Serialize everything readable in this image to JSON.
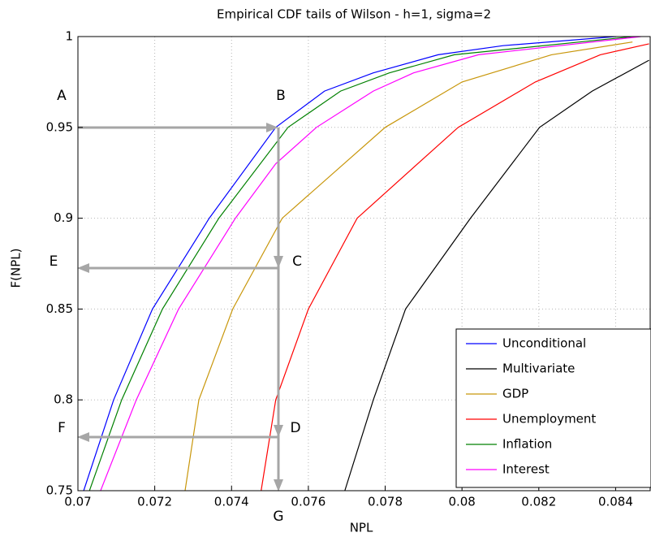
{
  "chart_data": {
    "type": "line",
    "title": "Empirical CDF tails of Wilson - h=1, sigma=2",
    "xlabel": "NPL",
    "ylabel": "F(NPL)",
    "xlim": [
      0.07,
      0.0849
    ],
    "ylim": [
      0.75,
      1
    ],
    "xticks": [
      0.07,
      0.072,
      0.074,
      0.076,
      0.078,
      0.08,
      0.082,
      0.084
    ],
    "yticks": [
      0.75,
      0.8,
      0.85,
      0.9,
      0.95,
      1
    ],
    "grid": true,
    "legend": "lower right",
    "annotations": [
      "A",
      "B",
      "C",
      "D",
      "E",
      "F",
      "G"
    ],
    "series": [
      {
        "name": "Unconditional",
        "color": "#0000ff",
        "x": [
          0.07015,
          0.07093,
          0.07194,
          0.07342,
          0.07515,
          0.07642,
          0.07769,
          0.07938,
          0.08107,
          0.084
        ],
        "values": [
          0.75,
          0.8,
          0.85,
          0.9,
          0.95,
          0.97,
          0.98,
          0.99,
          0.995,
          1
        ]
      },
      {
        "name": "Multivariate",
        "color": "#000000",
        "x": [
          0.07695,
          0.07769,
          0.07853,
          0.08022,
          0.08202,
          0.08339,
          0.08487
        ],
        "values": [
          0.75,
          0.8,
          0.85,
          0.9,
          0.95,
          0.97,
          0.987
        ]
      },
      {
        "name": "GDP",
        "color": "#c8960a",
        "x": [
          0.07279,
          0.07315,
          0.07403,
          0.07532,
          0.078,
          0.08,
          0.08233,
          0.08444
        ],
        "values": [
          0.75,
          0.8,
          0.85,
          0.9,
          0.95,
          0.975,
          0.99,
          0.997
        ]
      },
      {
        "name": "Unemployment",
        "color": "#ff0000",
        "x": [
          0.07477,
          0.07515,
          0.076,
          0.07727,
          0.0799,
          0.08191,
          0.0836,
          0.08487
        ],
        "values": [
          0.75,
          0.8,
          0.85,
          0.9,
          0.95,
          0.975,
          0.99,
          0.996
        ]
      },
      {
        "name": "Inflation",
        "color": "#008000",
        "x": [
          0.0703,
          0.07114,
          0.0722,
          0.07367,
          0.07547,
          0.07684,
          0.07811,
          0.0798,
          0.08445
        ],
        "values": [
          0.75,
          0.8,
          0.85,
          0.9,
          0.95,
          0.97,
          0.98,
          0.99,
          1
        ]
      },
      {
        "name": "Interest",
        "color": "#ff00ff",
        "x": [
          0.07059,
          0.07152,
          0.07262,
          0.0741,
          0.07515,
          0.07621,
          0.07769,
          0.07874,
          0.08043,
          0.08466
        ],
        "values": [
          0.75,
          0.8,
          0.85,
          0.9,
          0.93,
          0.95,
          0.97,
          0.98,
          0.99,
          1
        ]
      }
    ]
  }
}
